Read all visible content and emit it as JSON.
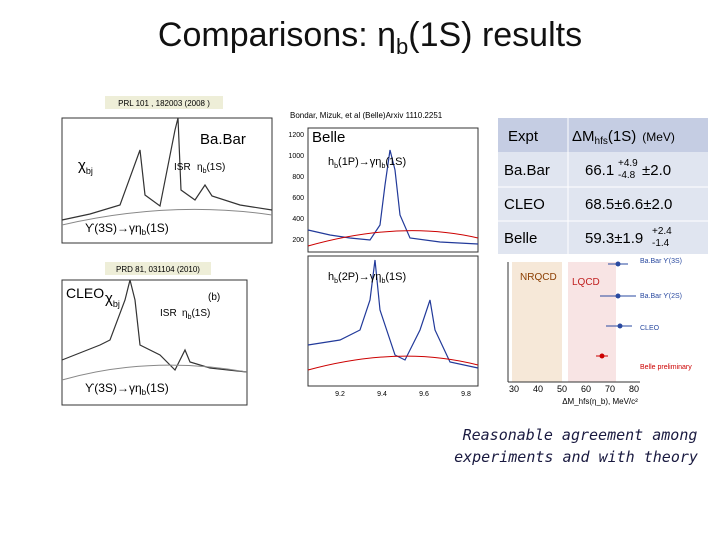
{
  "title": [
    "Comparisons:  η",
    "b",
    "(1S) results"
  ],
  "left": {
    "top": {
      "ref": "PRL 101 , 182003 (2008 )",
      "expt": "Ba.Bar",
      "chi": [
        "χ",
        "bj"
      ],
      "isr": "ISR",
      "eta": [
        "η",
        "b",
        "(1S)"
      ],
      "decay": [
        "ϒ(3S)→γη",
        "b",
        "(1S)"
      ]
    },
    "bottom": {
      "ref": "PRD 81, 031104 (2010)",
      "expt": "CLEO",
      "chi": [
        "χ",
        "bj"
      ],
      "panel": "(b)",
      "isr": "ISR",
      "eta": [
        "η",
        "b",
        "(1S)"
      ],
      "decay": [
        "ϒ(3S)→γη",
        "b",
        "(1S)"
      ]
    }
  },
  "middle": {
    "ref": "Bondar, Mizuk, et al (Belle)Arxiv 1110.2251",
    "expt": "Belle",
    "top_decay": [
      "h",
      "b",
      "(1P)→γη",
      "b",
      "(1S)"
    ],
    "bottom_decay": [
      "h",
      "b",
      "(2P)→γη",
      "b",
      "(1S)"
    ],
    "yticks": [
      "1200",
      "1000",
      "800",
      "600",
      "400",
      "200"
    ],
    "xticks": [
      "9.2",
      "9.4",
      "9.6",
      "9.8"
    ]
  },
  "table": {
    "header": [
      "Expt",
      [
        "ΔM",
        "hfs",
        "(1S)",
        "(MeV)"
      ]
    ],
    "rows": [
      [
        "Ba.Bar",
        [
          "66.1",
          "+4.9",
          "-4.8",
          "±2.0"
        ]
      ],
      [
        "CLEO",
        [
          "68.5±6.6±2.0"
        ]
      ],
      [
        "Belle",
        [
          "59.3±1.9",
          "+2.4",
          "-1.4"
        ]
      ]
    ]
  },
  "theory": {
    "bands": [
      "NRQCD",
      "LQCD"
    ],
    "legend": [
      "Ba.Bar ϒ(3S)",
      "Ba.Bar ϒ(2S)",
      "CLEO",
      "Belle preliminary"
    ],
    "xticks": [
      "30",
      "40",
      "50",
      "60",
      "70",
      "80"
    ],
    "xlabel": "ΔM_hfs(η_b), MeV/c²"
  },
  "conclusion": [
    "Reasonable agreement among",
    "experiments and with theory"
  ]
}
